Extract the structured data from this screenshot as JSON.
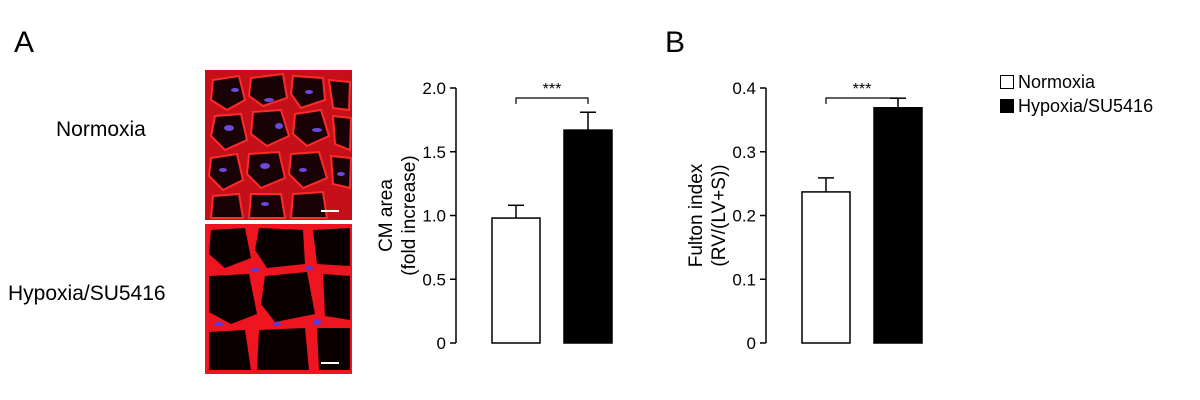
{
  "panel_a": {
    "letter": "A"
  },
  "panel_b": {
    "letter": "B"
  },
  "micrographs": [
    {
      "label": "Normoxia"
    },
    {
      "label": "Hypoxia/SU5416"
    }
  ],
  "legend": [
    {
      "label": "Normoxia",
      "color": "#ffffff"
    },
    {
      "label": "Hypoxia/SU5416",
      "color": "#000000"
    }
  ],
  "colors": {
    "membrane": "#e8101a",
    "nuclei": "#3a3ad8",
    "background": "#0b0000"
  },
  "chart_data": [
    {
      "type": "bar",
      "categories": [
        "Normoxia",
        "Hypoxia/SU5416"
      ],
      "values": [
        0.98,
        1.67
      ],
      "errors": [
        0.1,
        0.14
      ],
      "colors": [
        "#ffffff",
        "#000000"
      ],
      "ylabel": [
        "CM area",
        "(fold increase)"
      ],
      "ylim": [
        0,
        2.0
      ],
      "yticks": [
        "0",
        "0.5",
        "1.0",
        "1.5",
        "2.0"
      ],
      "ytick_values": [
        0,
        0.5,
        1.0,
        1.5,
        2.0
      ],
      "significance": "***"
    },
    {
      "type": "bar",
      "categories": [
        "Normoxia",
        "Hypoxia/SU5416"
      ],
      "values": [
        0.237,
        0.369
      ],
      "errors": [
        0.022,
        0.015
      ],
      "colors": [
        "#ffffff",
        "#000000"
      ],
      "ylabel": [
        "Fulton index",
        "(RV/(LV+S))"
      ],
      "ylim": [
        0,
        0.4
      ],
      "yticks": [
        "0",
        "0.1",
        "0.2",
        "0.3",
        "0.4"
      ],
      "ytick_values": [
        0,
        0.1,
        0.2,
        0.3,
        0.4
      ],
      "significance": "***"
    }
  ]
}
